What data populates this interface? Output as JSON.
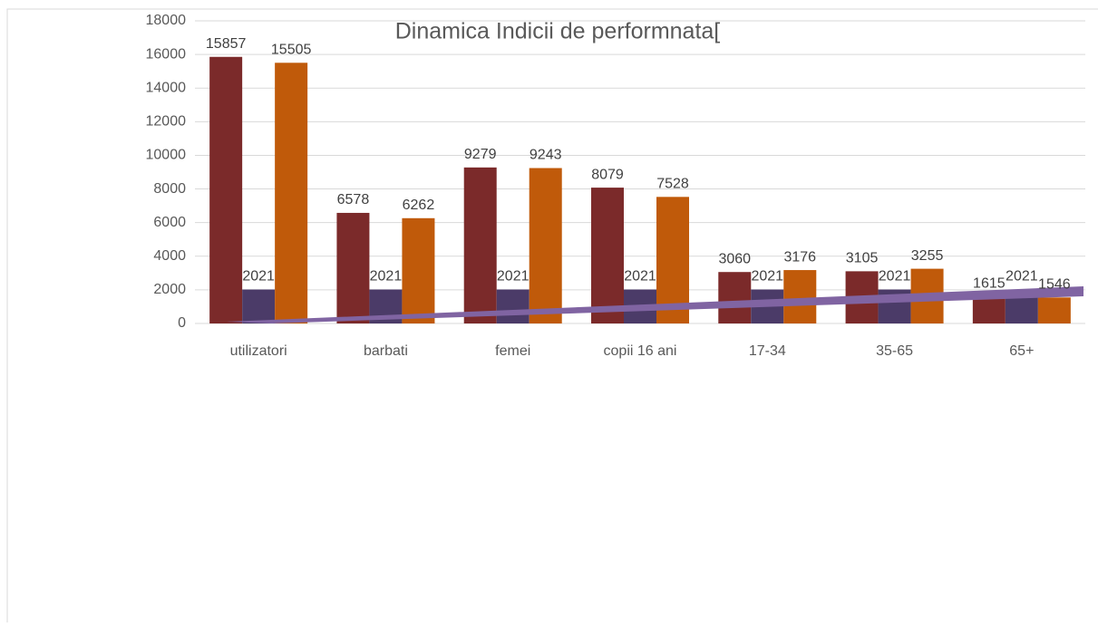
{
  "chart_data": {
    "type": "bar",
    "title": "Dinamica Indicii de performnata[",
    "categories": [
      "utilizatori",
      "barbati",
      "femei",
      "copii 16 ani",
      "17-34",
      "35-65",
      "65+"
    ],
    "series": [
      {
        "color": "#7b2a2a",
        "values": [
          15857,
          6578,
          9279,
          8079,
          3060,
          3105,
          1615
        ]
      },
      {
        "color": "#4b3b68",
        "values": [
          2021,
          2021,
          2021,
          2021,
          2021,
          2021,
          2021
        ]
      },
      {
        "color": "#c05a0a",
        "values": [
          15505,
          6262,
          9243,
          7528,
          3176,
          3255,
          1546
        ]
      }
    ],
    "ylim": [
      0,
      18000
    ],
    "yticks": [
      0,
      2000,
      4000,
      6000,
      8000,
      10000,
      12000,
      14000,
      16000,
      18000
    ],
    "grid": true
  }
}
